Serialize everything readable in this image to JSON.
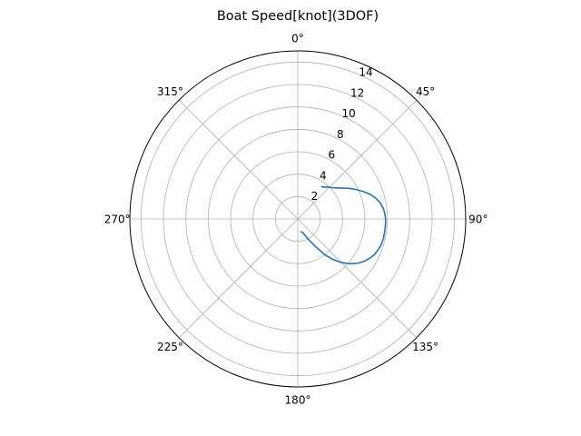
{
  "chart_data": {
    "type": "polar-line",
    "title": "Boat Speed[knot](3DOF)",
    "theta_direction": "clockwise",
    "theta_zero": "top",
    "theta_ticks": [
      0,
      45,
      90,
      135,
      180,
      225,
      270,
      315
    ],
    "theta_tick_labels": [
      "0°",
      "45°",
      "90°",
      "135°",
      "180°",
      "225°",
      "270°",
      "315°"
    ],
    "r_ticks": [
      2,
      4,
      6,
      8,
      10,
      12,
      14
    ],
    "r_tick_labels": [
      "2",
      "4",
      "6",
      "8",
      "10",
      "12",
      "14"
    ],
    "r_lim": [
      0,
      15
    ],
    "grid": true,
    "legend": "none",
    "series": [
      {
        "color": "#1f77b4",
        "theta_deg": [
          168,
          160,
          153,
          147,
          143,
          139,
          135,
          131,
          127,
          123,
          119,
          115,
          111,
          107,
          103,
          99,
          95,
          91,
          87,
          83,
          79,
          75,
          71,
          67,
          63,
          59,
          55,
          51,
          47,
          43,
          40,
          37,
          36
        ],
        "r": [
          1.15,
          1.3,
          2.0,
          3.0,
          4.0,
          4.8,
          5.5,
          6.1,
          6.6,
          7.0,
          7.3,
          7.55,
          7.7,
          7.8,
          7.85,
          7.85,
          7.85,
          7.85,
          7.8,
          7.7,
          7.5,
          7.2,
          6.8,
          6.3,
          5.8,
          5.3,
          4.8,
          4.4,
          4.1,
          3.9,
          3.7,
          3.6,
          3.55
        ]
      }
    ]
  }
}
